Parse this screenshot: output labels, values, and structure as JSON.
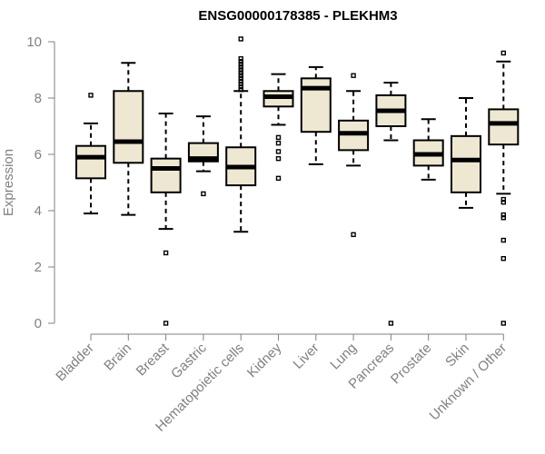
{
  "chart_data": {
    "type": "boxplot",
    "title": "ENSG00000178385 - PLEKHM3",
    "ylabel": "Expression",
    "xlabel": "",
    "ylim": [
      0,
      10
    ],
    "yticks": [
      0,
      2,
      4,
      6,
      8,
      10
    ],
    "categories": [
      "Bladder",
      "Brain",
      "Breast",
      "Gastric",
      "Hematopoietic cells",
      "Kidney",
      "Liver",
      "Lung",
      "Pancreas",
      "Prostate",
      "Skin",
      "Unknown / Other"
    ],
    "boxes": [
      {
        "category": "Bladder",
        "whisker_low": 3.9,
        "q1": 5.15,
        "median": 5.9,
        "q3": 6.3,
        "whisker_high": 7.1,
        "outliers": [
          8.1
        ]
      },
      {
        "category": "Brain",
        "whisker_low": 3.85,
        "q1": 5.7,
        "median": 6.45,
        "q3": 8.25,
        "whisker_high": 9.25,
        "outliers": []
      },
      {
        "category": "Breast",
        "whisker_low": 3.35,
        "q1": 4.65,
        "median": 5.5,
        "q3": 5.85,
        "whisker_high": 7.45,
        "outliers": [
          2.5,
          0.0
        ]
      },
      {
        "category": "Gastric",
        "whisker_low": 5.4,
        "q1": 5.75,
        "median": 5.85,
        "q3": 6.4,
        "whisker_high": 7.35,
        "outliers": [
          4.6
        ]
      },
      {
        "category": "Hematopoietic cells",
        "whisker_low": 3.25,
        "q1": 4.9,
        "median": 5.55,
        "q3": 6.25,
        "whisker_high": 8.25,
        "outliers": [
          8.3,
          8.4,
          8.5,
          8.6,
          8.7,
          8.8,
          8.9,
          9.0,
          9.1,
          9.2,
          9.3,
          9.4,
          10.1
        ]
      },
      {
        "category": "Kidney",
        "whisker_low": 7.05,
        "q1": 7.7,
        "median": 8.05,
        "q3": 8.25,
        "whisker_high": 8.85,
        "outliers": [
          6.6,
          6.4,
          6.1,
          5.85,
          5.15
        ]
      },
      {
        "category": "Liver",
        "whisker_low": 5.65,
        "q1": 6.8,
        "median": 8.35,
        "q3": 8.7,
        "whisker_high": 9.1,
        "outliers": []
      },
      {
        "category": "Lung",
        "whisker_low": 5.6,
        "q1": 6.15,
        "median": 6.75,
        "q3": 7.2,
        "whisker_high": 8.25,
        "outliers": [
          8.8,
          3.15
        ]
      },
      {
        "category": "Pancreas",
        "whisker_low": 6.5,
        "q1": 7.0,
        "median": 7.55,
        "q3": 8.1,
        "whisker_high": 8.55,
        "outliers": [
          0.0
        ]
      },
      {
        "category": "Prostate",
        "whisker_low": 5.1,
        "q1": 5.6,
        "median": 6.0,
        "q3": 6.5,
        "whisker_high": 7.25,
        "outliers": []
      },
      {
        "category": "Skin",
        "whisker_low": 4.1,
        "q1": 4.65,
        "median": 5.8,
        "q3": 6.65,
        "whisker_high": 8.0,
        "outliers": []
      },
      {
        "category": "Unknown / Other",
        "whisker_low": 4.6,
        "q1": 6.35,
        "median": 7.1,
        "q3": 7.6,
        "whisker_high": 9.3,
        "outliers": [
          9.6,
          4.4,
          4.3,
          3.85,
          3.75,
          2.95,
          2.3,
          0.0
        ]
      }
    ],
    "box_color": "#eee8d2",
    "axis_color": "#808080",
    "grid": false
  }
}
